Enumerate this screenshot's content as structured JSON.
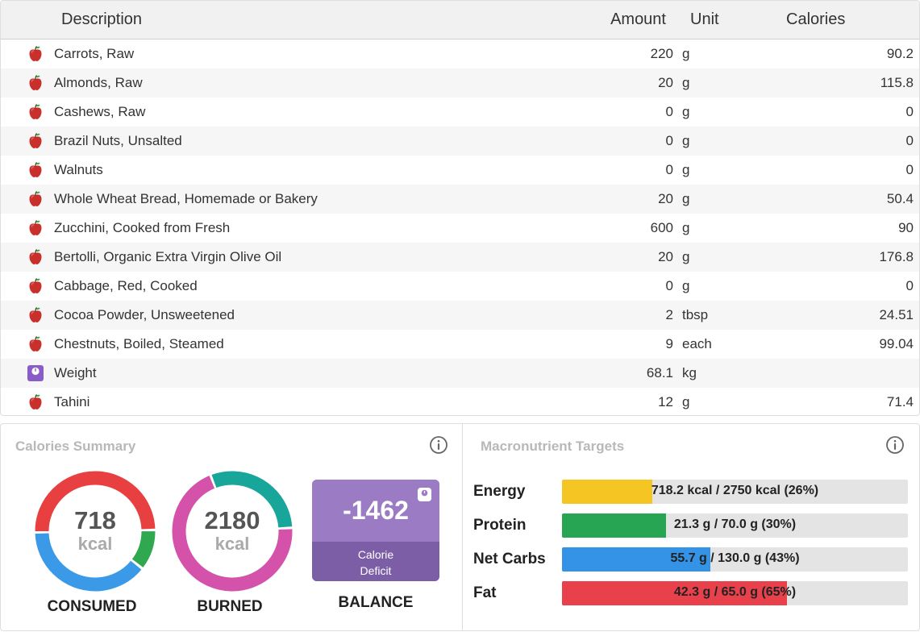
{
  "log": {
    "headers": {
      "description": "Description",
      "amount": "Amount",
      "unit": "Unit",
      "calories": "Calories"
    },
    "rows": [
      {
        "icon": "apple-icon",
        "description": "Carrots, Raw",
        "amount": "220",
        "unit": "g",
        "calories": "90.2"
      },
      {
        "icon": "apple-icon",
        "description": "Almonds, Raw",
        "amount": "20",
        "unit": "g",
        "calories": "115.8"
      },
      {
        "icon": "apple-icon",
        "description": "Cashews, Raw",
        "amount": "0",
        "unit": "g",
        "calories": "0"
      },
      {
        "icon": "apple-icon",
        "description": "Brazil Nuts, Unsalted",
        "amount": "0",
        "unit": "g",
        "calories": "0"
      },
      {
        "icon": "apple-icon",
        "description": "Walnuts",
        "amount": "0",
        "unit": "g",
        "calories": "0"
      },
      {
        "icon": "apple-icon",
        "description": "Whole Wheat Bread, Homemade or Bakery",
        "amount": "20",
        "unit": "g",
        "calories": "50.4"
      },
      {
        "icon": "apple-icon",
        "description": "Zucchini, Cooked from Fresh",
        "amount": "600",
        "unit": "g",
        "calories": "90"
      },
      {
        "icon": "apple-icon",
        "description": "Bertolli, Organic Extra Virgin Olive Oil",
        "amount": "20",
        "unit": "g",
        "calories": "176.8"
      },
      {
        "icon": "apple-icon",
        "description": "Cabbage, Red, Cooked",
        "amount": "0",
        "unit": "g",
        "calories": "0"
      },
      {
        "icon": "apple-icon",
        "description": "Cocoa Powder, Unsweetened",
        "amount": "2",
        "unit": "tbsp",
        "calories": "24.51"
      },
      {
        "icon": "apple-icon",
        "description": "Chestnuts, Boiled, Steamed",
        "amount": "9",
        "unit": "each",
        "calories": "99.04"
      },
      {
        "icon": "scale-icon",
        "description": "Weight",
        "amount": "68.1",
        "unit": "kg",
        "calories": ""
      },
      {
        "icon": "apple-icon",
        "description": "Tahini",
        "amount": "12",
        "unit": "g",
        "calories": "71.4"
      }
    ]
  },
  "calories_summary": {
    "title": "Calories Summary",
    "consumed": {
      "value": "718",
      "unit": "kcal",
      "label": "CONSUMED",
      "segments": [
        {
          "color": "#e84040",
          "fraction": 0.5
        },
        {
          "color": "#2fa84f",
          "fraction": 0.11
        },
        {
          "color": "#3b9ae8",
          "fraction": 0.39
        }
      ]
    },
    "burned": {
      "value": "2180",
      "unit": "kcal",
      "label": "BURNED",
      "segments": [
        {
          "color": "#18a59a",
          "fraction": 0.3
        },
        {
          "color": "#d452a9",
          "fraction": 0.7
        }
      ]
    },
    "balance": {
      "value": "-1462",
      "line1": "Calorie",
      "line2": "Deficit",
      "label": "BALANCE",
      "color": "#9b7cc4",
      "dark_color": "#7c5ea6"
    }
  },
  "macros": {
    "title": "Macronutrient Targets",
    "items": [
      {
        "name": "Energy",
        "value": "718.2 kcal / 2750 kcal (26%)",
        "fraction": 0.26,
        "color": "#f5c623"
      },
      {
        "name": "Protein",
        "value": "21.3 g / 70.0 g (30%)",
        "fraction": 0.3,
        "color": "#27a552"
      },
      {
        "name": "Net Carbs",
        "value": "55.7 g / 130.0 g (43%)",
        "fraction": 0.43,
        "color": "#3493e6"
      },
      {
        "name": "Fat",
        "value": "42.3 g / 65.0 g (65%)",
        "fraction": 0.65,
        "color": "#e8414b"
      }
    ]
  }
}
